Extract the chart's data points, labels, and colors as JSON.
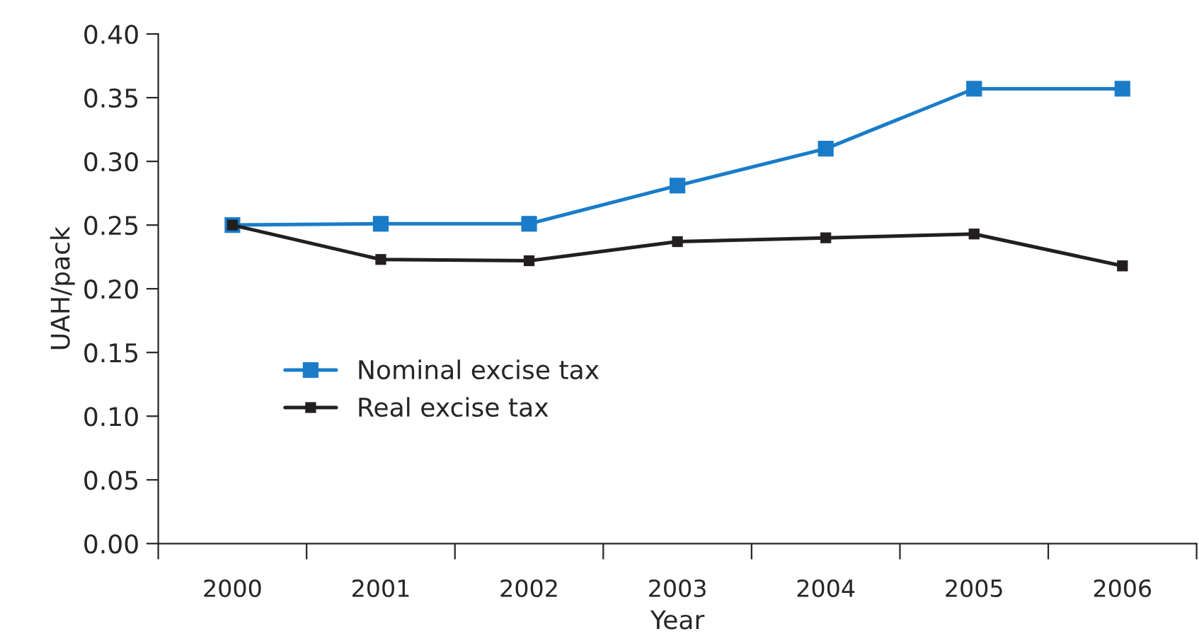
{
  "chart_data": {
    "type": "line",
    "xlabel": "Year",
    "ylabel": "UAH/pack",
    "categories": [
      "2000",
      "2001",
      "2002",
      "2003",
      "2004",
      "2005",
      "2006"
    ],
    "series": [
      {
        "name": "Nominal excise tax",
        "color": "#1a7cc9",
        "values": [
          0.25,
          0.251,
          0.251,
          0.281,
          0.31,
          0.357,
          0.357
        ]
      },
      {
        "name": "Real excise tax",
        "color": "#231f20",
        "values": [
          0.25,
          0.223,
          0.222,
          0.237,
          0.24,
          0.243,
          0.218
        ]
      }
    ],
    "ylim": [
      0,
      0.4
    ],
    "yticks": [
      {
        "value": 0,
        "label": "0.00"
      },
      {
        "value": 0.05,
        "label": "0.05"
      },
      {
        "value": 0.1,
        "label": "0.10"
      },
      {
        "value": 0.15,
        "label": "0.15"
      },
      {
        "value": 0.2,
        "label": "0.20"
      },
      {
        "value": 0.25,
        "label": "0.25"
      },
      {
        "value": 0.3,
        "label": "0.30"
      },
      {
        "value": 0.35,
        "label": "0.35"
      },
      {
        "value": 0.4,
        "label": "0.40"
      }
    ],
    "grid": false,
    "legend": "left",
    "marker": "square",
    "line_style": "solid"
  }
}
